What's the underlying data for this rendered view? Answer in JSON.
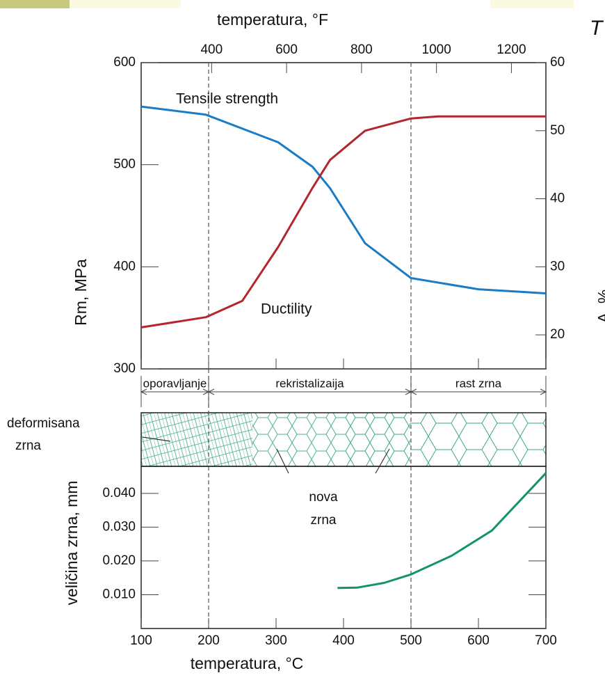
{
  "corner_text": "T",
  "chart_data": [
    {
      "type": "line",
      "x_label": "temperatura, °F",
      "y_label": "Rm, MPa",
      "y2_label": "A, %",
      "xlim": [
        100,
        700
      ],
      "xticks": [
        100,
        200,
        300,
        400,
        500,
        600,
        700
      ],
      "x2lim": [
        212,
        1292
      ],
      "x2ticks": [
        400,
        600,
        800,
        1000,
        1200
      ],
      "ylim": [
        300,
        600
      ],
      "yticks": [
        300,
        400,
        500,
        600
      ],
      "y2lim": [
        15,
        60
      ],
      "y2ticks": [
        20,
        30,
        40,
        50,
        60
      ],
      "series": [
        {
          "name": "Tensile strength",
          "color": "#1a7cc6",
          "x": [
            100,
            196,
            303,
            354,
            380,
            432,
            500,
            600,
            700
          ],
          "values": [
            557,
            549,
            522,
            498,
            477,
            423,
            389,
            378,
            374
          ]
        },
        {
          "name": "Ductility",
          "color": "#b3262e",
          "axis": "y2",
          "x": [
            100,
            196,
            250,
            303,
            354,
            380,
            432,
            500,
            540,
            700
          ],
          "values": [
            21.1,
            22.6,
            25,
            32.9,
            41.6,
            45.7,
            50,
            51.8,
            52.1,
            52.1
          ]
        }
      ],
      "phase_boundaries": [
        200,
        500
      ],
      "regions": [
        {
          "label": "oporavljanje",
          "from": 100,
          "to": 200
        },
        {
          "label": "rekristalizaija",
          "from": 200,
          "to": 500
        },
        {
          "label": "rast zrna",
          "from": 500,
          "to": 700
        }
      ],
      "annotations": [
        "deformisana",
        "zrna",
        "nova",
        "zrna"
      ]
    },
    {
      "type": "line",
      "x_label": "temperatura, °C",
      "y_label": "veličina zrna, mm",
      "xlim": [
        100,
        700
      ],
      "xticks": [
        100,
        200,
        300,
        400,
        500,
        600,
        700
      ],
      "ylim": [
        0,
        0.048
      ],
      "yticks": [
        {
          "value": 0.01,
          "label": "0.010"
        },
        {
          "value": 0.02,
          "label": "0.020"
        },
        {
          "value": 0.03,
          "label": "0.030"
        },
        {
          "value": 0.04,
          "label": "0.040"
        }
      ],
      "series": [
        {
          "color": "#13936c",
          "x": [
            391,
            420,
            460,
            500,
            560,
            620,
            700
          ],
          "values": [
            0.012,
            0.0121,
            0.0135,
            0.016,
            0.0215,
            0.029,
            0.046
          ]
        }
      ]
    }
  ]
}
